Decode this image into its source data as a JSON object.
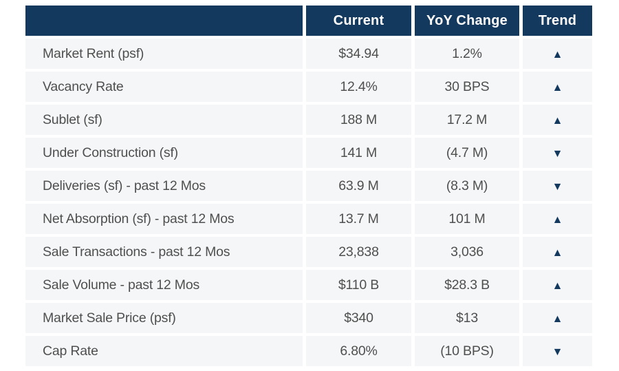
{
  "colors": {
    "header_bg": "#14395e",
    "row_bg": "#f5f6f7",
    "body_text": "#4f4f4f",
    "trend_icon": "#14395e",
    "header_text": "#ffffff",
    "gutter": "#ffffff"
  },
  "icons": {
    "up": "▲",
    "down": "▼"
  },
  "chart_data": {
    "type": "table",
    "columns": [
      "",
      "Current",
      "YoY Change",
      "Trend"
    ],
    "rows": [
      {
        "label": "Market Rent (psf)",
        "current": "$34.94",
        "yoy_change": "1.2%",
        "trend": "up"
      },
      {
        "label": "Vacancy Rate",
        "current": "12.4%",
        "yoy_change": "30 BPS",
        "trend": "up"
      },
      {
        "label": "Sublet (sf)",
        "current": "188 M",
        "yoy_change": "17.2 M",
        "trend": "up"
      },
      {
        "label": "Under Construction (sf)",
        "current": "141 M",
        "yoy_change": "(4.7 M)",
        "trend": "down"
      },
      {
        "label": "Deliveries (sf) - past 12 Mos",
        "current": "63.9 M",
        "yoy_change": "(8.3 M)",
        "trend": "down"
      },
      {
        "label": "Net Absorption (sf) - past 12 Mos",
        "current": "13.7 M",
        "yoy_change": "101 M",
        "trend": "up"
      },
      {
        "label": "Sale Transactions - past 12 Mos",
        "current": "23,838",
        "yoy_change": "3,036",
        "trend": "up"
      },
      {
        "label": "Sale Volume - past 12 Mos",
        "current": "$110 B",
        "yoy_change": "$28.3 B",
        "trend": "up"
      },
      {
        "label": "Market Sale Price (psf)",
        "current": "$340",
        "yoy_change": "$13",
        "trend": "up"
      },
      {
        "label": "Cap Rate",
        "current": "6.80%",
        "yoy_change": "(10 BPS)",
        "trend": "down"
      }
    ]
  }
}
